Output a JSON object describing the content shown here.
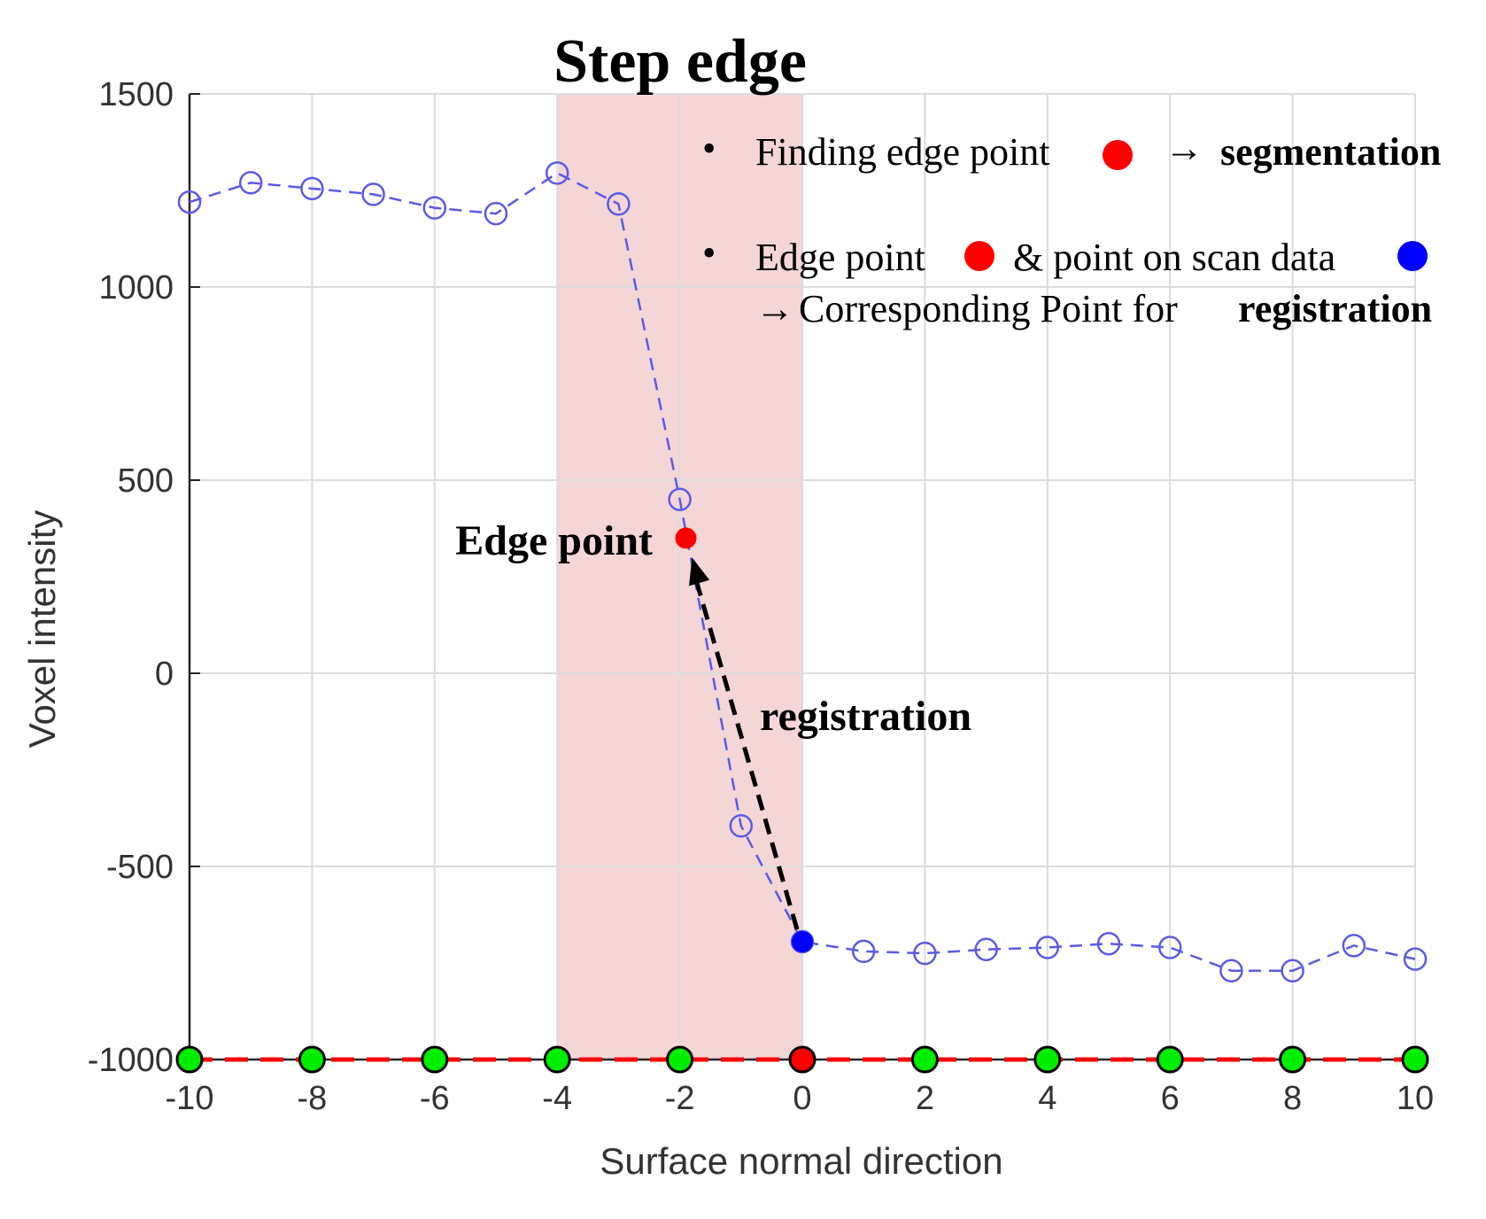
{
  "chart_data": {
    "type": "line",
    "title": "Step edge",
    "xlabel": "Surface normal direction",
    "ylabel": "Voxel intensity",
    "xlim": [
      -10,
      10
    ],
    "ylim": [
      -1000,
      1500
    ],
    "x_ticks": [
      -10,
      -8,
      -6,
      -4,
      -2,
      0,
      2,
      4,
      6,
      8,
      10
    ],
    "y_ticks": [
      1500,
      1000,
      500,
      0,
      -500,
      -1000
    ],
    "grid": true,
    "shaded_region": {
      "x_from": -4,
      "x_to": 0,
      "color": "#f4d6d6"
    },
    "series": [
      {
        "style": "dashed line with open circle markers",
        "color": "#5a5ae6",
        "x": [
          -10,
          -9,
          -8,
          -7,
          -6,
          -5,
          -4,
          -3,
          -2,
          -1,
          0,
          1,
          2,
          3,
          4,
          5,
          6,
          7,
          8,
          9,
          10
        ],
        "y": [
          1220,
          1270,
          1255,
          1240,
          1205,
          1190,
          1295,
          1215,
          450,
          -395,
          -695,
          -720,
          -725,
          -715,
          -710,
          -700,
          -710,
          -770,
          -770,
          -705,
          -740
        ]
      },
      {
        "style": "dashed baseline with filled markers",
        "line_color": "#ff0000",
        "marker_color": "#00ee00",
        "x": [
          -10,
          -8,
          -6,
          -4,
          -2,
          0,
          2,
          4,
          6,
          8,
          10
        ],
        "y": [
          -1000,
          -1000,
          -1000,
          -1000,
          -1000,
          -1000,
          -1000,
          -1000,
          -1000,
          -1000,
          -1000
        ],
        "marker_colors": [
          "#00ee00",
          "#00ee00",
          "#00ee00",
          "#00ee00",
          "#00ee00",
          "#ff0000",
          "#00ee00",
          "#00ee00",
          "#00ee00",
          "#00ee00",
          "#00ee00"
        ]
      }
    ],
    "edge_point": {
      "x": -1.9,
      "y": 350,
      "color": "#ff0000",
      "label": "Edge point"
    },
    "scan_point": {
      "x": 0,
      "y": -695,
      "color": "#0000ff"
    },
    "arrow": {
      "from_x": 0,
      "from_y": -695,
      "to_x": -1.8,
      "to_y": 300,
      "label": "registration"
    },
    "annotations": {
      "bullet": "•",
      "line1_text": "Finding edge point",
      "line1_arrow": "→",
      "line1_bold": "segmentation",
      "line2_text_a": "Edge point",
      "line2_text_b": "& point on scan data",
      "line3_arrow": "→",
      "line3_text": "Corresponding Point for",
      "line3_bold": "registration",
      "marker_red": "#ff0000",
      "marker_blue": "#0000ff"
    }
  }
}
